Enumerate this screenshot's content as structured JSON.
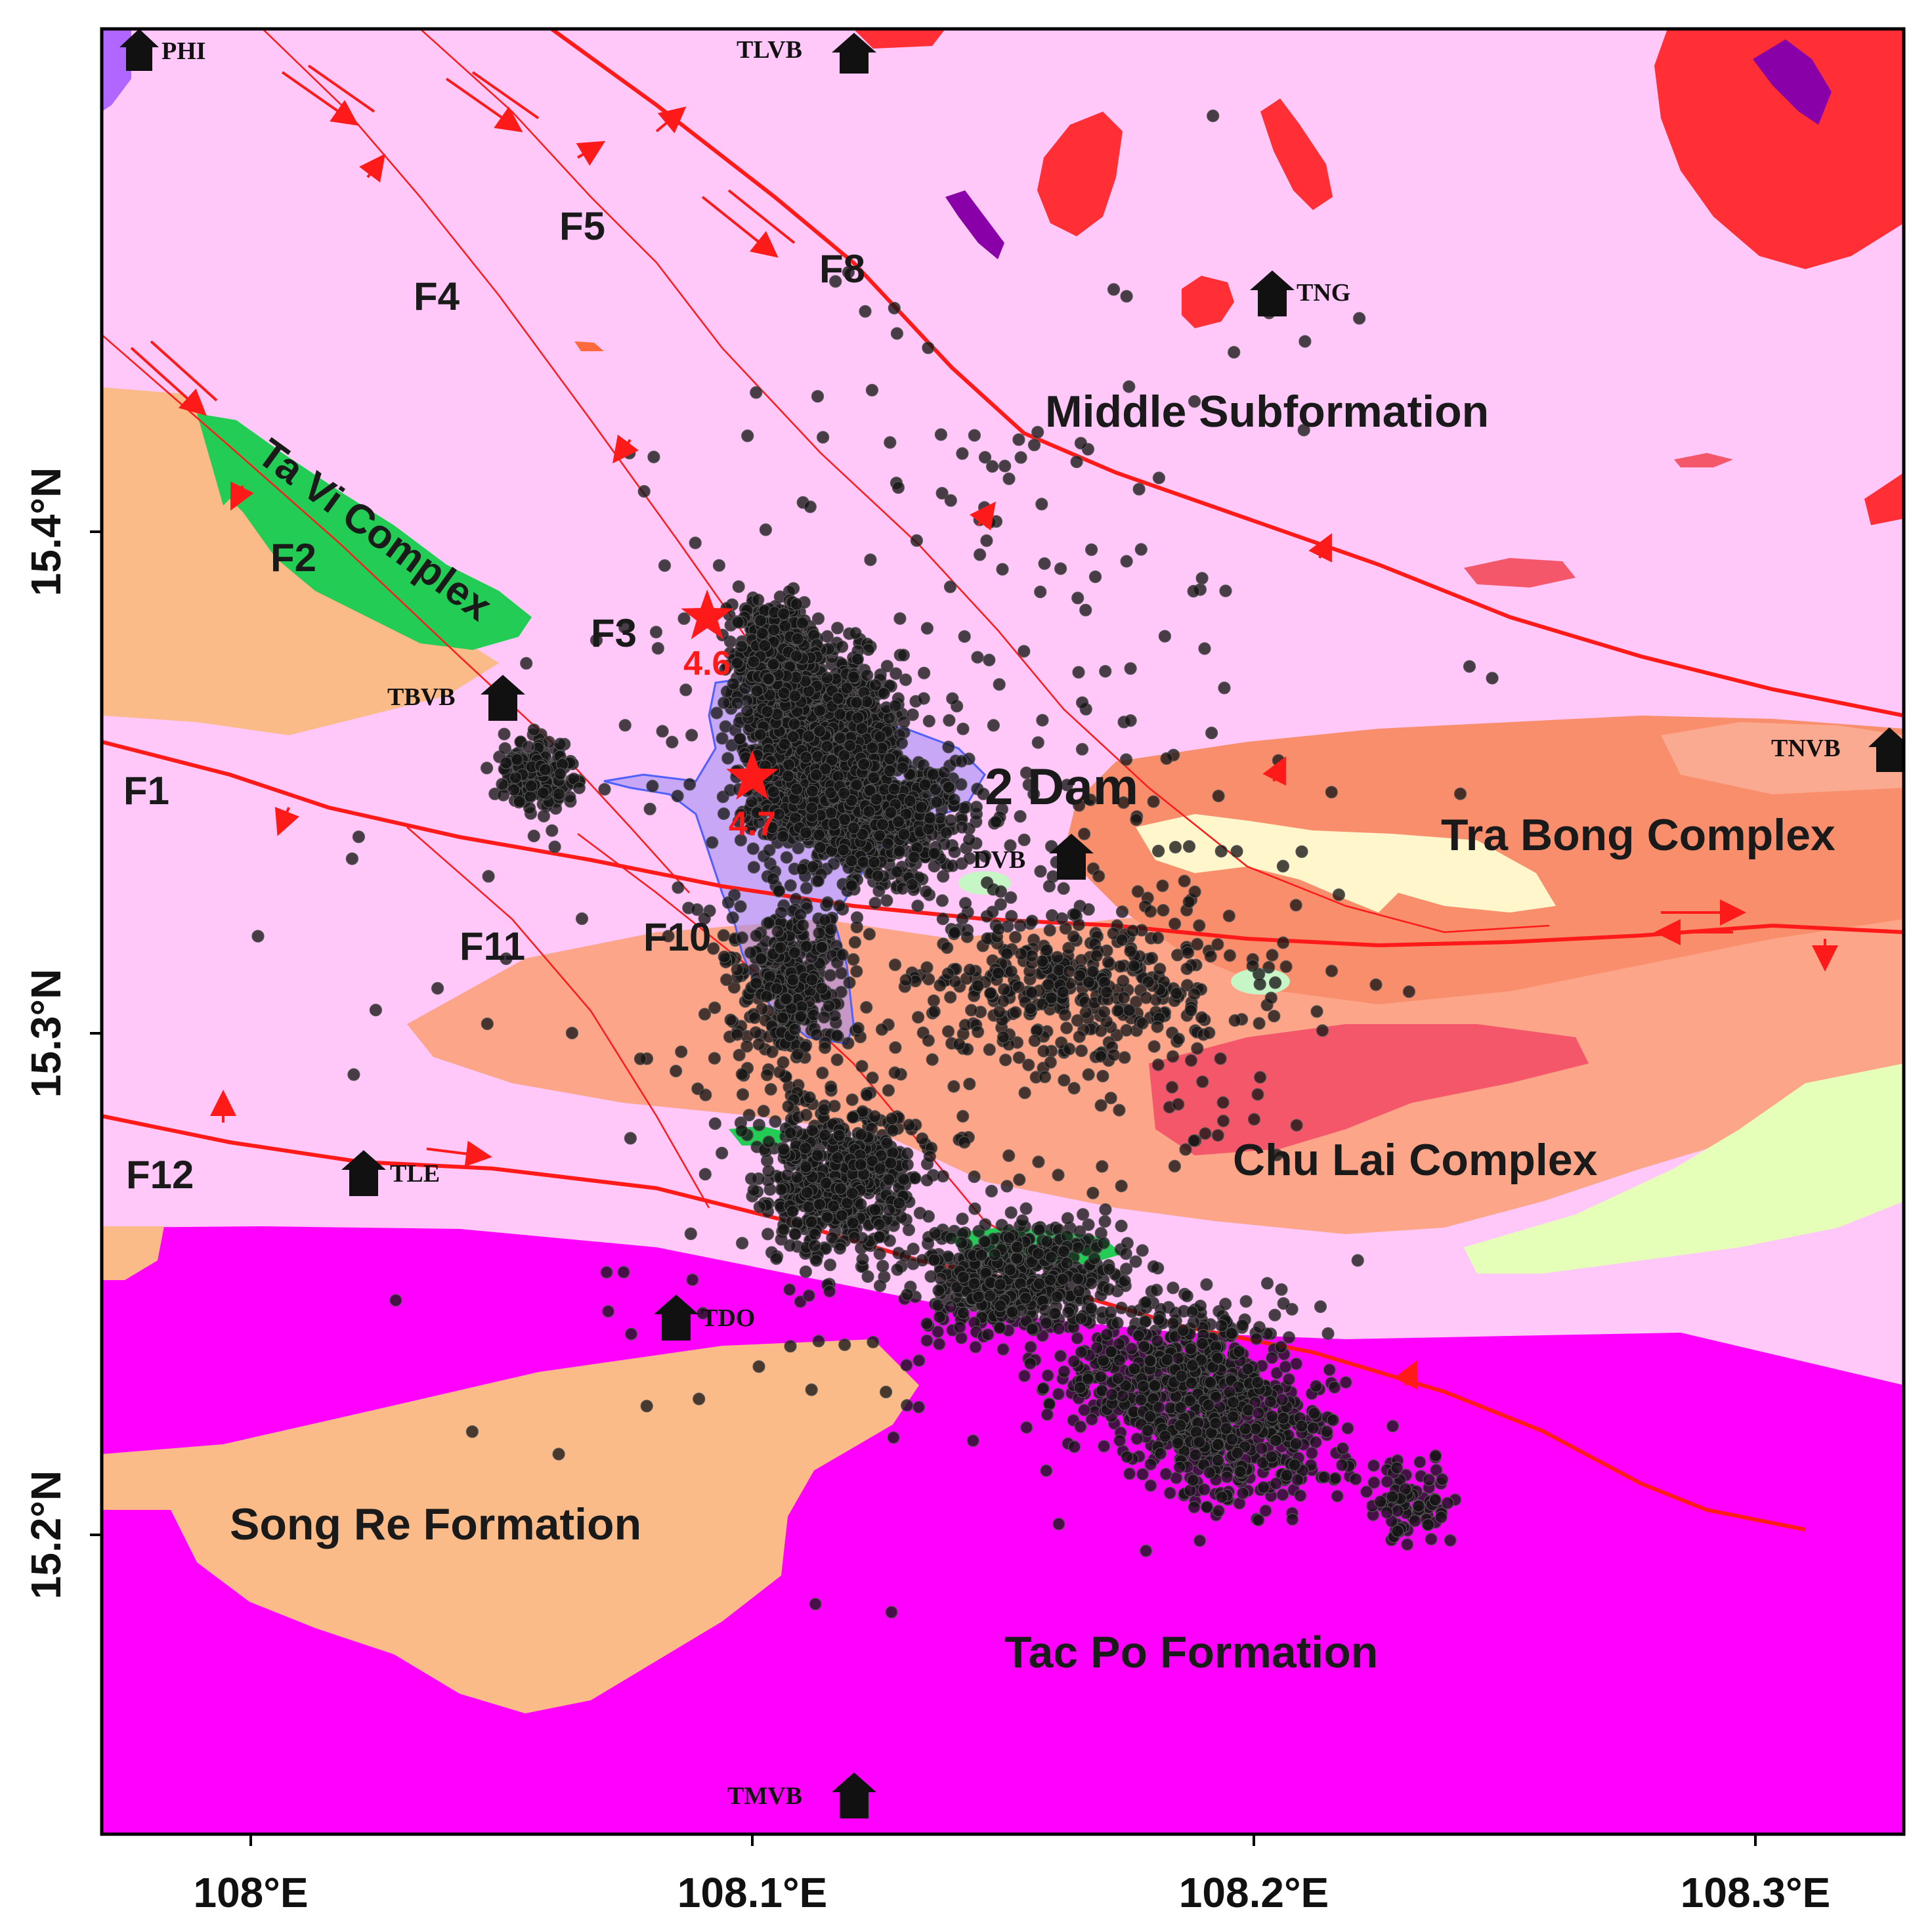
{
  "map": {
    "axes": {
      "lon_ticks": [
        {
          "value": 108.0,
          "label": "108°E"
        },
        {
          "value": 108.1,
          "label": "108.1°E"
        },
        {
          "value": 108.2,
          "label": "108.2°E"
        },
        {
          "value": 108.3,
          "label": "108.3°E"
        }
      ],
      "lat_ticks": [
        {
          "value": 15.4,
          "label": "15.4°N"
        },
        {
          "value": 15.3,
          "label": "15.3°N"
        },
        {
          "value": 15.2,
          "label": "15.2°N"
        }
      ]
    },
    "geology_labels": {
      "middle_subformation": "Middle Subformation",
      "ta_vi_complex": "Ta Vi Complex",
      "tra_bong_complex": "Tra Bong Complex",
      "chu_lai_complex": "Chu Lai Complex",
      "song_re_formation": "Song Re Formation",
      "tac_po_formation": "Tac Po Formation",
      "dam": "Song Tranh 2 Dam",
      "dam_visible": "2 Dam"
    },
    "fault_labels": [
      "F1",
      "F2",
      "F3",
      "F4",
      "F5",
      "F8",
      "F10",
      "F11",
      "F12"
    ],
    "stations": [
      "PHI",
      "TLVB",
      "TNG",
      "TBVB",
      "TNVB",
      "DVB",
      "TLE",
      "TDO",
      "TMVB"
    ],
    "mainshocks": [
      {
        "magnitude": "4.6",
        "lon": 108.091,
        "lat": 15.383
      },
      {
        "magnitude": "4.7",
        "lon": 108.1,
        "lat": 15.351
      }
    ],
    "colors": {
      "middle_subformation": "#ffc8f8",
      "tac_po_formation": "#ff00ff",
      "song_re_formation": "#fbbb88",
      "tra_bong_complex": "#f98e6c",
      "chu_lai_complex": "#fca589",
      "ta_vi_complex": "#22cc55",
      "granite_red": "#ff2f35",
      "fault_line": "#ff1a1a",
      "mainshock": "#ff1a1a",
      "event_dot": "#141414",
      "reservoir": "#9a8cf5",
      "light_green": "#e6ffb8",
      "pale_yellow": "#fff6cc"
    }
  }
}
